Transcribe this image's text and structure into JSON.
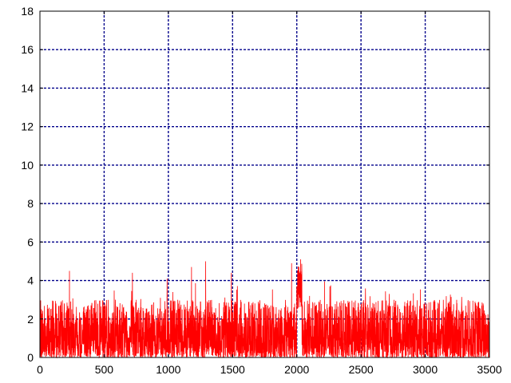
{
  "chart_data": {
    "type": "line",
    "title": "",
    "xlabel": "",
    "ylabel": "",
    "xlim": [
      0,
      3500
    ],
    "ylim": [
      0,
      18
    ],
    "x_ticks": [
      0,
      500,
      1000,
      1500,
      2000,
      2500,
      3000,
      3500
    ],
    "y_ticks": [
      0,
      2,
      4,
      6,
      8,
      10,
      12,
      14,
      16,
      18
    ],
    "x_tick_labels": [
      "0",
      "500",
      "1000",
      "1500",
      "2000",
      "2500",
      "3000",
      "3500"
    ],
    "y_tick_labels": [
      "0",
      "2",
      "4",
      "6",
      "8",
      "10",
      "12",
      "14",
      "16",
      "18"
    ],
    "grid": true,
    "grid_color": "#00008b",
    "series": [
      {
        "color": "#ff0000",
        "x_range": [
          0,
          3500
        ],
        "n_points": 3500,
        "typical_range": [
          0,
          3
        ],
        "max_value": 5.1,
        "peaks": [
          {
            "x": 230,
            "y": 4.5
          },
          {
            "x": 720,
            "y": 4.4
          },
          {
            "x": 990,
            "y": 4.1
          },
          {
            "x": 1180,
            "y": 4.7
          },
          {
            "x": 1290,
            "y": 5.0
          },
          {
            "x": 1490,
            "y": 4.4
          },
          {
            "x": 1960,
            "y": 4.9
          },
          {
            "x": 2030,
            "y": 5.1
          },
          {
            "x": 2100,
            "y": 3.2
          }
        ],
        "step_up_interval": [
          2000,
          2040
        ]
      }
    ]
  }
}
